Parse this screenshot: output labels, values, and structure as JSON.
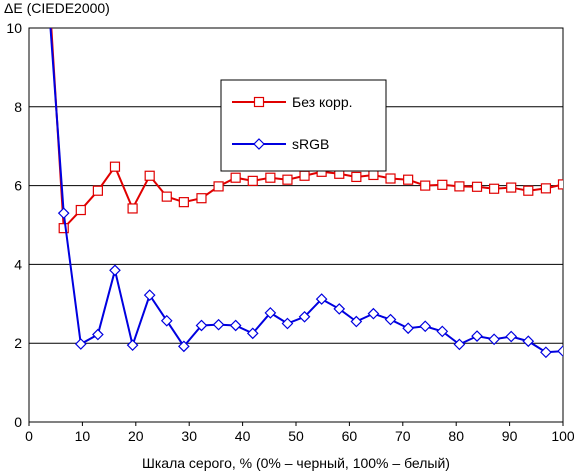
{
  "chart_data": {
    "type": "line",
    "title": "",
    "ylabel": "ΔE (CIEDE2000)",
    "xlabel": "Шкала серого, % (0% – черный, 100% – белый)",
    "xlim": [
      0,
      100
    ],
    "ylim": [
      0,
      10
    ],
    "xticks": [
      0,
      10,
      20,
      30,
      40,
      50,
      60,
      70,
      80,
      90,
      100
    ],
    "yticks": [
      0,
      2,
      4,
      6,
      8,
      10
    ],
    "grid": "horizontal",
    "legend_position": "top-center",
    "series": [
      {
        "name": "Без корр.",
        "color": "#e00000",
        "marker": "square",
        "x": [
          3.5,
          6.5,
          9.7,
          12.9,
          16.1,
          19.4,
          22.6,
          25.8,
          29.0,
          32.3,
          35.5,
          38.7,
          41.9,
          45.2,
          48.4,
          51.6,
          54.8,
          58.1,
          61.3,
          64.5,
          67.7,
          71.0,
          74.2,
          77.4,
          80.6,
          83.9,
          87.1,
          90.3,
          93.5,
          96.8,
          100.0
        ],
        "y": [
          11.5,
          4.92,
          5.38,
          5.87,
          6.48,
          5.42,
          6.25,
          5.72,
          5.58,
          5.68,
          5.98,
          6.2,
          6.12,
          6.2,
          6.15,
          6.25,
          6.35,
          6.3,
          6.22,
          6.27,
          6.18,
          6.15,
          6.0,
          6.02,
          5.98,
          5.97,
          5.92,
          5.95,
          5.87,
          5.93,
          6.03
        ]
      },
      {
        "name": "sRGB",
        "color": "#0000e0",
        "marker": "diamond",
        "x": [
          3.5,
          6.5,
          9.7,
          12.9,
          16.1,
          19.4,
          22.6,
          25.8,
          29.0,
          32.3,
          35.5,
          38.7,
          41.9,
          45.2,
          48.4,
          51.6,
          54.8,
          58.1,
          61.3,
          64.5,
          67.7,
          71.0,
          74.2,
          77.4,
          80.6,
          83.9,
          87.1,
          90.3,
          93.5,
          96.8,
          100.0
        ],
        "y": [
          11.0,
          5.3,
          1.98,
          2.22,
          3.85,
          1.95,
          3.22,
          2.57,
          1.92,
          2.45,
          2.47,
          2.45,
          2.25,
          2.77,
          2.5,
          2.67,
          3.12,
          2.87,
          2.55,
          2.75,
          2.6,
          2.38,
          2.43,
          2.3,
          1.97,
          2.18,
          2.1,
          2.17,
          2.05,
          1.77,
          1.8
        ]
      }
    ]
  }
}
